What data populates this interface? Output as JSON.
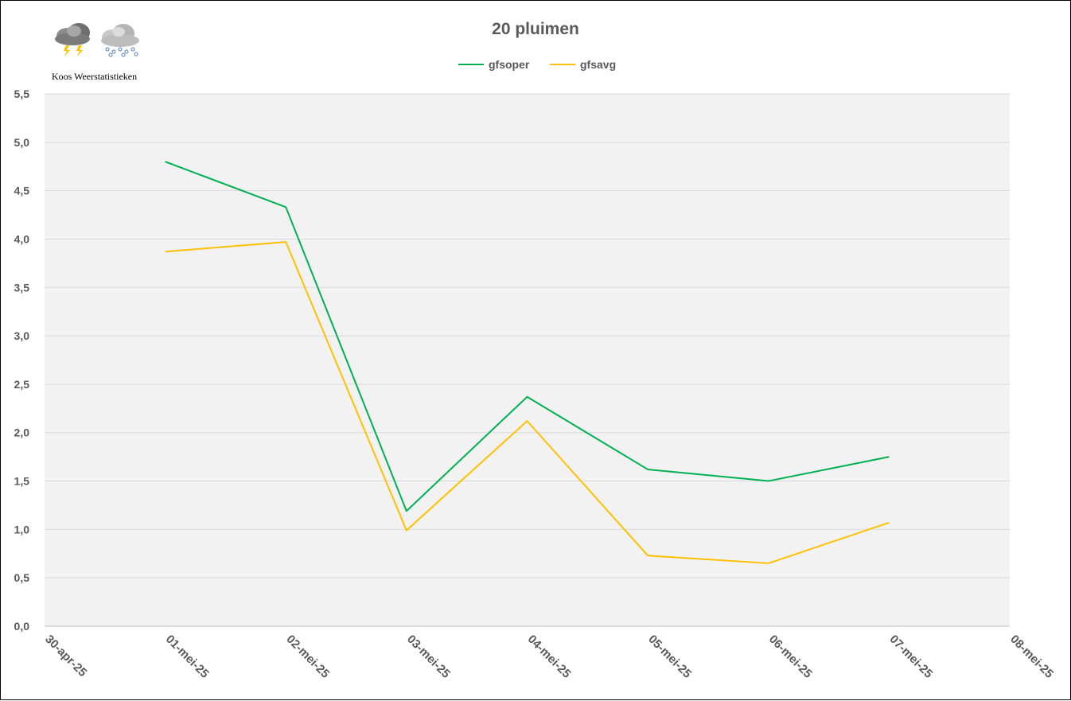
{
  "logo": {
    "caption": "Koos Weerstatistieken",
    "icons": [
      "thunderstorm-cloud-icon",
      "hail-cloud-icon"
    ]
  },
  "chart_data": {
    "type": "line",
    "title": "20 pluimen",
    "xlabel": "",
    "ylabel": "",
    "x_ticks": [
      "30-apr-25",
      "01-mei-25",
      "02-mei-25",
      "03-mei-25",
      "04-mei-25",
      "05-mei-25",
      "06-mei-25",
      "07-mei-25",
      "08-mei-25"
    ],
    "x": [
      "01-mei-25",
      "02-mei-25",
      "03-mei-25",
      "04-mei-25",
      "05-mei-25",
      "06-mei-25",
      "07-mei-25"
    ],
    "y_ticks": [
      "0,0",
      "0,5",
      "1,0",
      "1,5",
      "2,0",
      "2,5",
      "3,0",
      "3,5",
      "4,0",
      "4,5",
      "5,0",
      "5,5"
    ],
    "ylim": [
      0,
      5.5
    ],
    "grid": true,
    "legend": "top-center",
    "series": [
      {
        "name": "gfsoper",
        "color": "#00b050",
        "values": [
          4.8,
          4.33,
          1.19,
          2.37,
          1.62,
          1.5,
          1.75
        ]
      },
      {
        "name": "gfsavg",
        "color": "#ffc000",
        "values": [
          3.87,
          3.97,
          0.99,
          2.12,
          0.73,
          0.65,
          1.07
        ]
      }
    ]
  }
}
